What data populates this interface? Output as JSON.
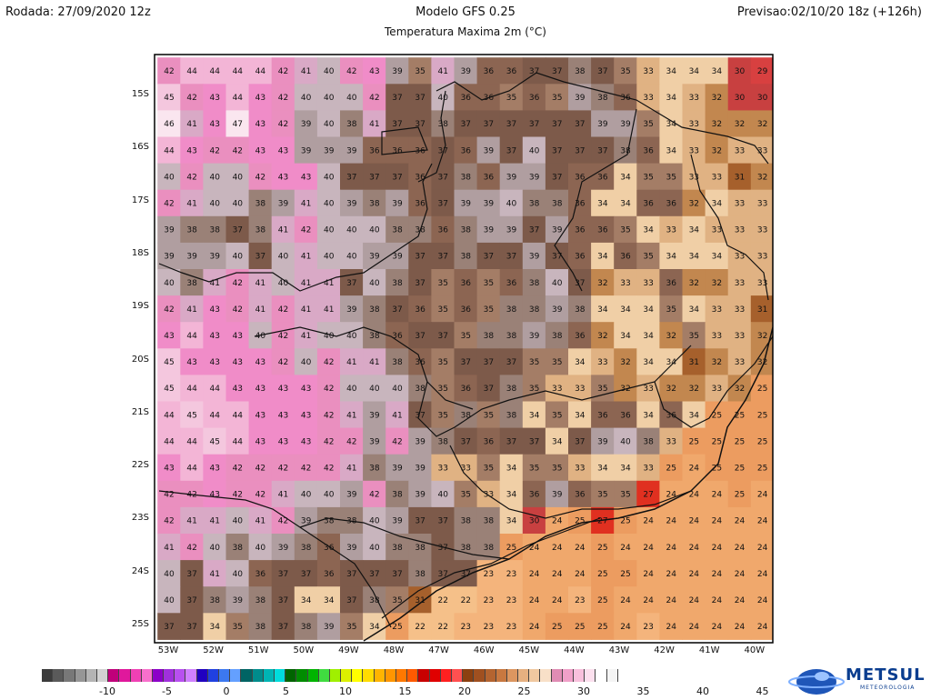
{
  "header": {
    "run": "Rodada: 27/09/2020 12z",
    "model": "Modelo GFS 0.25",
    "product": "Temperatura Maxima 2m (°C)",
    "valid": "Previsao:02/10/20 18z (+126h)"
  },
  "map": {
    "lat_labels": [
      "15S",
      "16S",
      "17S",
      "18S",
      "19S",
      "20S",
      "21S",
      "22S",
      "23S",
      "24S",
      "25S"
    ],
    "lon_labels": [
      "53W",
      "52W",
      "51W",
      "50W",
      "49W",
      "48W",
      "47W",
      "46W",
      "45W",
      "44W",
      "43W",
      "42W",
      "41W",
      "40W"
    ],
    "grid_values": [
      [
        42,
        44,
        44,
        44,
        44,
        42,
        41,
        40,
        42,
        43,
        39,
        35,
        41,
        39,
        36,
        36,
        37,
        37,
        38,
        37,
        35,
        33,
        34,
        34,
        34,
        30,
        29
      ],
      [
        45,
        42,
        43,
        44,
        43,
        42,
        40,
        40,
        40,
        42,
        37,
        37,
        40,
        36,
        36,
        35,
        36,
        35,
        39,
        38,
        36,
        33,
        34,
        33,
        32,
        30,
        30
      ],
      [
        46,
        41,
        43,
        47,
        43,
        42,
        39,
        40,
        38,
        41,
        37,
        37,
        38,
        37,
        37,
        37,
        37,
        37,
        37,
        39,
        39,
        35,
        34,
        33,
        32,
        32,
        32
      ],
      [
        44,
        43,
        42,
        42,
        43,
        43,
        39,
        39,
        39,
        36,
        36,
        36,
        37,
        36,
        39,
        37,
        40,
        37,
        37,
        37,
        38,
        36,
        34,
        33,
        32,
        33,
        33
      ],
      [
        40,
        42,
        40,
        40,
        42,
        43,
        43,
        40,
        37,
        37,
        37,
        36,
        37,
        38,
        36,
        39,
        39,
        37,
        36,
        36,
        34,
        35,
        35,
        33,
        33,
        31,
        32
      ],
      [
        42,
        41,
        40,
        40,
        38,
        39,
        41,
        40,
        39,
        38,
        39,
        36,
        37,
        39,
        39,
        40,
        38,
        38,
        36,
        34,
        34,
        36,
        36,
        32,
        34,
        33,
        33
      ],
      [
        39,
        38,
        38,
        37,
        38,
        41,
        42,
        40,
        40,
        40,
        38,
        38,
        36,
        38,
        39,
        39,
        37,
        39,
        36,
        36,
        35,
        34,
        33,
        34,
        33,
        33,
        33
      ],
      [
        39,
        39,
        39,
        40,
        37,
        40,
        41,
        40,
        40,
        39,
        39,
        37,
        37,
        38,
        37,
        37,
        39,
        37,
        36,
        34,
        36,
        35,
        34,
        34,
        34,
        33,
        33
      ],
      [
        40,
        38,
        41,
        42,
        41,
        40,
        41,
        41,
        37,
        40,
        38,
        37,
        35,
        36,
        35,
        36,
        38,
        40,
        37,
        32,
        33,
        33,
        36,
        32,
        32,
        33,
        33
      ],
      [
        42,
        41,
        43,
        42,
        41,
        42,
        41,
        41,
        39,
        38,
        37,
        36,
        35,
        36,
        35,
        38,
        38,
        39,
        38,
        34,
        34,
        34,
        35,
        34,
        33,
        33,
        31
      ],
      [
        43,
        44,
        43,
        43,
        40,
        42,
        41,
        40,
        40,
        38,
        36,
        37,
        37,
        35,
        38,
        38,
        39,
        38,
        36,
        32,
        34,
        34,
        32,
        35,
        33,
        33,
        32
      ],
      [
        45,
        43,
        43,
        43,
        43,
        42,
        40,
        42,
        41,
        41,
        38,
        36,
        35,
        37,
        37,
        37,
        35,
        35,
        34,
        33,
        32,
        34,
        34,
        31,
        32,
        33,
        32
      ],
      [
        45,
        44,
        44,
        43,
        43,
        43,
        43,
        42,
        40,
        40,
        40,
        38,
        35,
        36,
        37,
        38,
        35,
        33,
        33,
        35,
        32,
        33,
        32,
        32,
        33,
        32,
        25
      ],
      [
        44,
        45,
        44,
        44,
        43,
        43,
        43,
        42,
        41,
        39,
        41,
        37,
        35,
        38,
        35,
        38,
        34,
        35,
        34,
        36,
        36,
        34,
        36,
        34,
        25,
        25,
        25
      ],
      [
        44,
        44,
        45,
        44,
        43,
        43,
        43,
        42,
        42,
        39,
        42,
        39,
        38,
        37,
        36,
        37,
        37,
        34,
        37,
        39,
        40,
        38,
        33,
        25,
        25,
        25,
        25
      ],
      [
        43,
        44,
        43,
        42,
        42,
        42,
        42,
        42,
        41,
        38,
        39,
        39,
        33,
        33,
        35,
        34,
        35,
        35,
        33,
        34,
        34,
        33,
        25,
        24,
        25,
        25,
        25
      ],
      [
        42,
        42,
        43,
        42,
        42,
        41,
        40,
        40,
        39,
        42,
        38,
        39,
        40,
        35,
        33,
        34,
        36,
        39,
        36,
        35,
        35,
        27,
        24,
        24,
        24,
        25,
        24
      ],
      [
        42,
        41,
        41,
        40,
        41,
        42,
        39,
        38,
        38,
        40,
        39,
        37,
        37,
        38,
        38,
        34,
        30,
        24,
        25,
        27,
        25,
        24,
        24,
        24,
        24,
        24,
        24
      ],
      [
        41,
        42,
        40,
        38,
        40,
        39,
        38,
        36,
        39,
        40,
        38,
        38,
        37,
        38,
        38,
        25,
        24,
        24,
        24,
        25,
        24,
        24,
        24,
        24,
        24,
        24,
        24
      ],
      [
        40,
        37,
        41,
        40,
        36,
        37,
        37,
        36,
        37,
        37,
        37,
        38,
        37,
        37,
        23,
        23,
        24,
        24,
        24,
        25,
        25,
        24,
        24,
        24,
        24,
        24,
        24
      ],
      [
        40,
        37,
        38,
        39,
        38,
        37,
        34,
        34,
        37,
        38,
        35,
        31,
        22,
        22,
        23,
        23,
        24,
        24,
        23,
        25,
        24,
        24,
        24,
        24,
        24,
        24,
        24
      ],
      [
        37,
        37,
        34,
        35,
        38,
        37,
        38,
        39,
        35,
        34,
        25,
        22,
        22,
        23,
        23,
        23,
        24,
        25,
        25,
        25,
        24,
        23,
        24,
        24,
        24,
        24,
        24
      ]
    ]
  },
  "colorbar": {
    "colors": [
      "#3c3c3c",
      "#5a5a5a",
      "#787878",
      "#969696",
      "#b4b4b4",
      "#d2d2d2",
      "#c0007a",
      "#e0189c",
      "#f040b4",
      "#f870cc",
      "#8c00c8",
      "#a030dc",
      "#b850f0",
      "#d080ff",
      "#2000c0",
      "#2040e0",
      "#3c78f0",
      "#64a0ff",
      "#006464",
      "#008c8c",
      "#00b4b4",
      "#00dcdc",
      "#006400",
      "#008c00",
      "#00b400",
      "#40dc40",
      "#a0f000",
      "#dcf000",
      "#ffff00",
      "#ffdc00",
      "#ffb400",
      "#ff9600",
      "#ff7800",
      "#ff5a00",
      "#c80000",
      "#e00000",
      "#ff2020",
      "#ff5050",
      "#8c4010",
      "#a05020",
      "#b46430",
      "#c87840",
      "#dc9660",
      "#e6b080",
      "#f0c8a0",
      "#f8e0c8",
      "#e08cb4",
      "#f0a0c8",
      "#f8c0dc",
      "#fce0ee",
      "#ffffff",
      "#f4f4f4"
    ],
    "tick_labels": [
      "-10",
      "-5",
      "0",
      "5",
      "10",
      "15",
      "20",
      "25",
      "30",
      "35",
      "40",
      "45"
    ]
  },
  "logo": {
    "name": "METSUL",
    "subtitle": "METEOROLOGIA"
  }
}
